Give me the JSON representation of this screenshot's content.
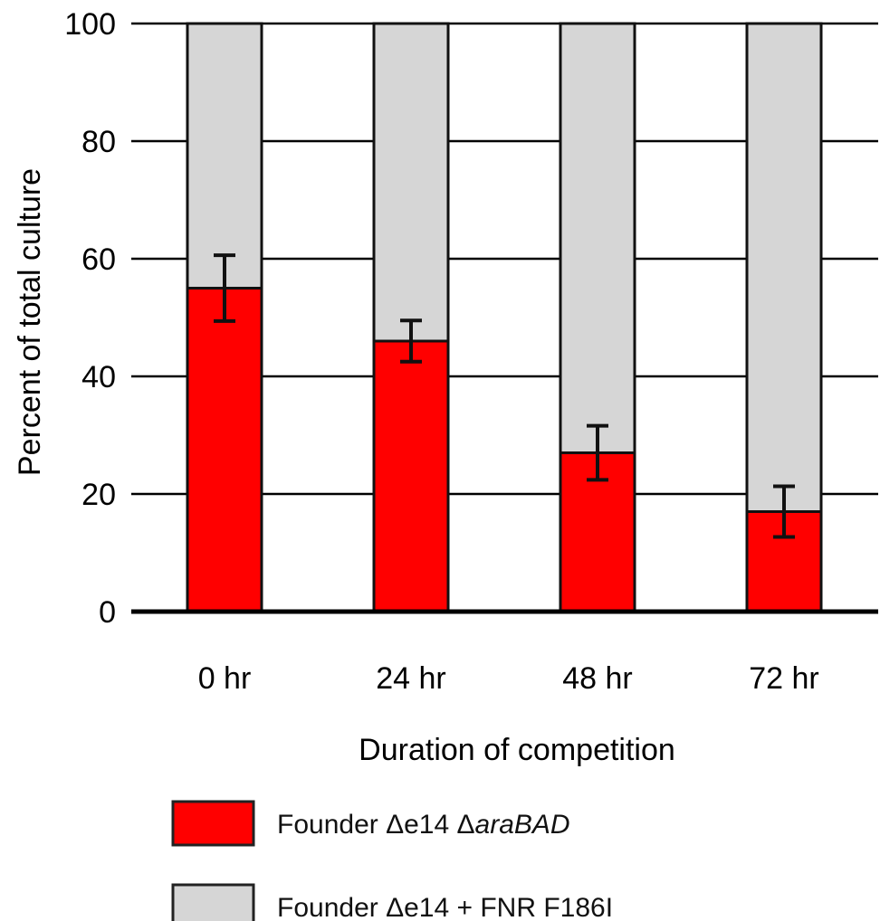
{
  "chart_data": {
    "type": "bar",
    "stacked": true,
    "categories": [
      "0 hr",
      "24 hr",
      "48 hr",
      "72 hr"
    ],
    "series": [
      {
        "name_prefix": "Founder Δe14 Δ",
        "name_italic": "araBAD",
        "values": [
          55,
          46,
          27,
          17
        ],
        "error": [
          5.6,
          3.5,
          4.6,
          4.3
        ],
        "color": "#ff0000"
      },
      {
        "name": "Founder Δe14 + FNR F186I",
        "values": [
          45,
          54,
          73,
          83
        ],
        "color": "#d6d6d6"
      }
    ],
    "ylabel": "Percent of total culture",
    "xlabel": "Duration of competition",
    "ylim": [
      0,
      100
    ],
    "yticks": [
      "0",
      "20",
      "40",
      "60",
      "80",
      "100"
    ],
    "grid": true,
    "legend_position": "bottom"
  }
}
